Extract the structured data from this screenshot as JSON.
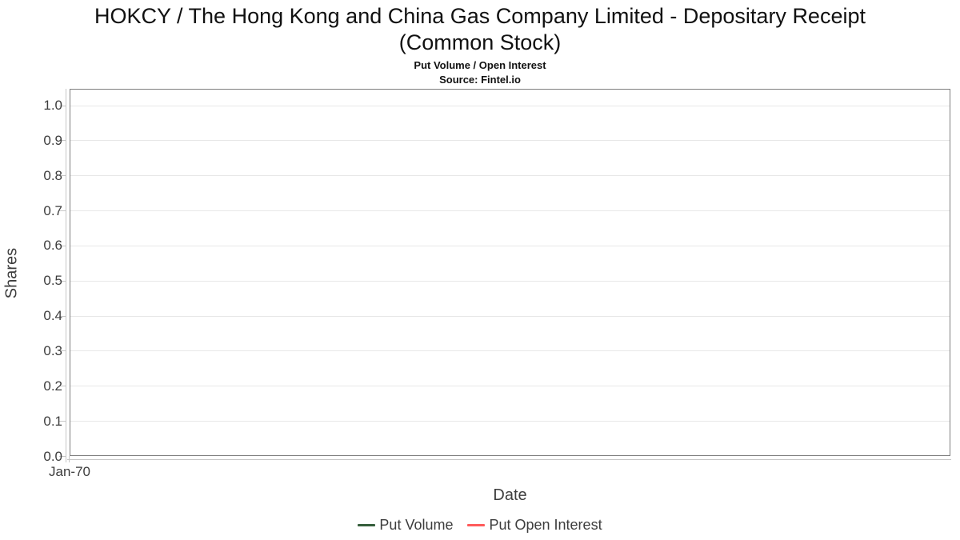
{
  "header": {
    "title_line1": "HOKCY / The Hong Kong and China Gas Company Limited - Depositary Receipt",
    "title_line2": "(Common Stock)",
    "subtitle": "Put Volume / Open Interest",
    "source": "Source: Fintel.io"
  },
  "chart_data": {
    "type": "line",
    "title": "HOKCY / The Hong Kong and China Gas Company Limited - Depositary Receipt (Common Stock)",
    "subtitle": "Put Volume / Open Interest",
    "source": "Source: Fintel.io",
    "xlabel": "Date",
    "ylabel": "Shares",
    "ylim": [
      0.0,
      1.05
    ],
    "grid": "horizontal",
    "legend_position": "bottom-center",
    "yticks": {
      "values": [
        0.0,
        0.1,
        0.2,
        0.3,
        0.4,
        0.5,
        0.6,
        0.7,
        0.8,
        0.9,
        1.0
      ],
      "labels": [
        "0.0",
        "0.1",
        "0.2",
        "0.3",
        "0.4",
        "0.5",
        "0.6",
        "0.7",
        "0.8",
        "0.9",
        "1.0"
      ]
    },
    "xticks": [
      {
        "position": 0,
        "label": "Jan-70"
      }
    ],
    "series": [
      {
        "name": "Put Volume",
        "color": "#355E3B",
        "x": [],
        "values": []
      },
      {
        "name": "Put Open Interest",
        "color": "#FF5B5B",
        "x": [],
        "values": []
      }
    ],
    "colors": {
      "plot_border": "#7e7e7e",
      "gridline": "#e7e7e7",
      "axis_line": "#c6c6c6",
      "tick_label": "#3d3d3d",
      "title": "#111111"
    }
  }
}
